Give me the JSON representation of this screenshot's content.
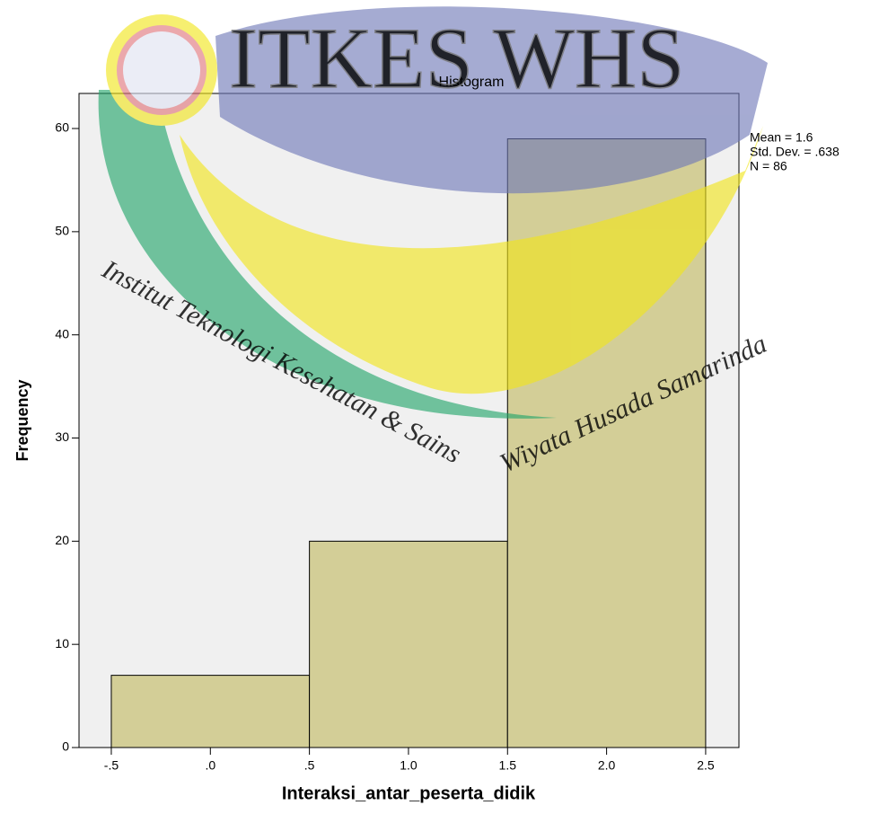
{
  "chart_data": {
    "type": "histogram",
    "title": "Histogram",
    "x_label": "Interaksi_antar_peserta_didik",
    "y_label": "Frequency",
    "bins": [
      -0.5,
      0.5,
      1.5,
      2.5
    ],
    "values": [
      7,
      20,
      59
    ],
    "color": "#d3ce97",
    "xlim": [
      -0.663,
      2.668
    ],
    "ylim": [
      0,
      63.4
    ],
    "xticks": [
      {
        "value": -0.5,
        "label": "-.5"
      },
      {
        "value": 0,
        "label": ".0"
      },
      {
        "value": 0.5,
        "label": ".5"
      },
      {
        "value": 1,
        "label": "1.0"
      },
      1.5,
      {
        "value": 2,
        "label": "2.0"
      },
      2.5
    ],
    "yticks": [
      0,
      10,
      20,
      30,
      40,
      50,
      60
    ],
    "annotations": [
      "Mean = 1.6",
      "Std. Dev. = .638",
      "N = 86"
    ]
  },
  "watermark": {
    "logo_text": "ITKES WHS",
    "line1": "Institut Teknologi Kesehatan & Sains",
    "line2": "Wiyata Husada Samarinda"
  }
}
